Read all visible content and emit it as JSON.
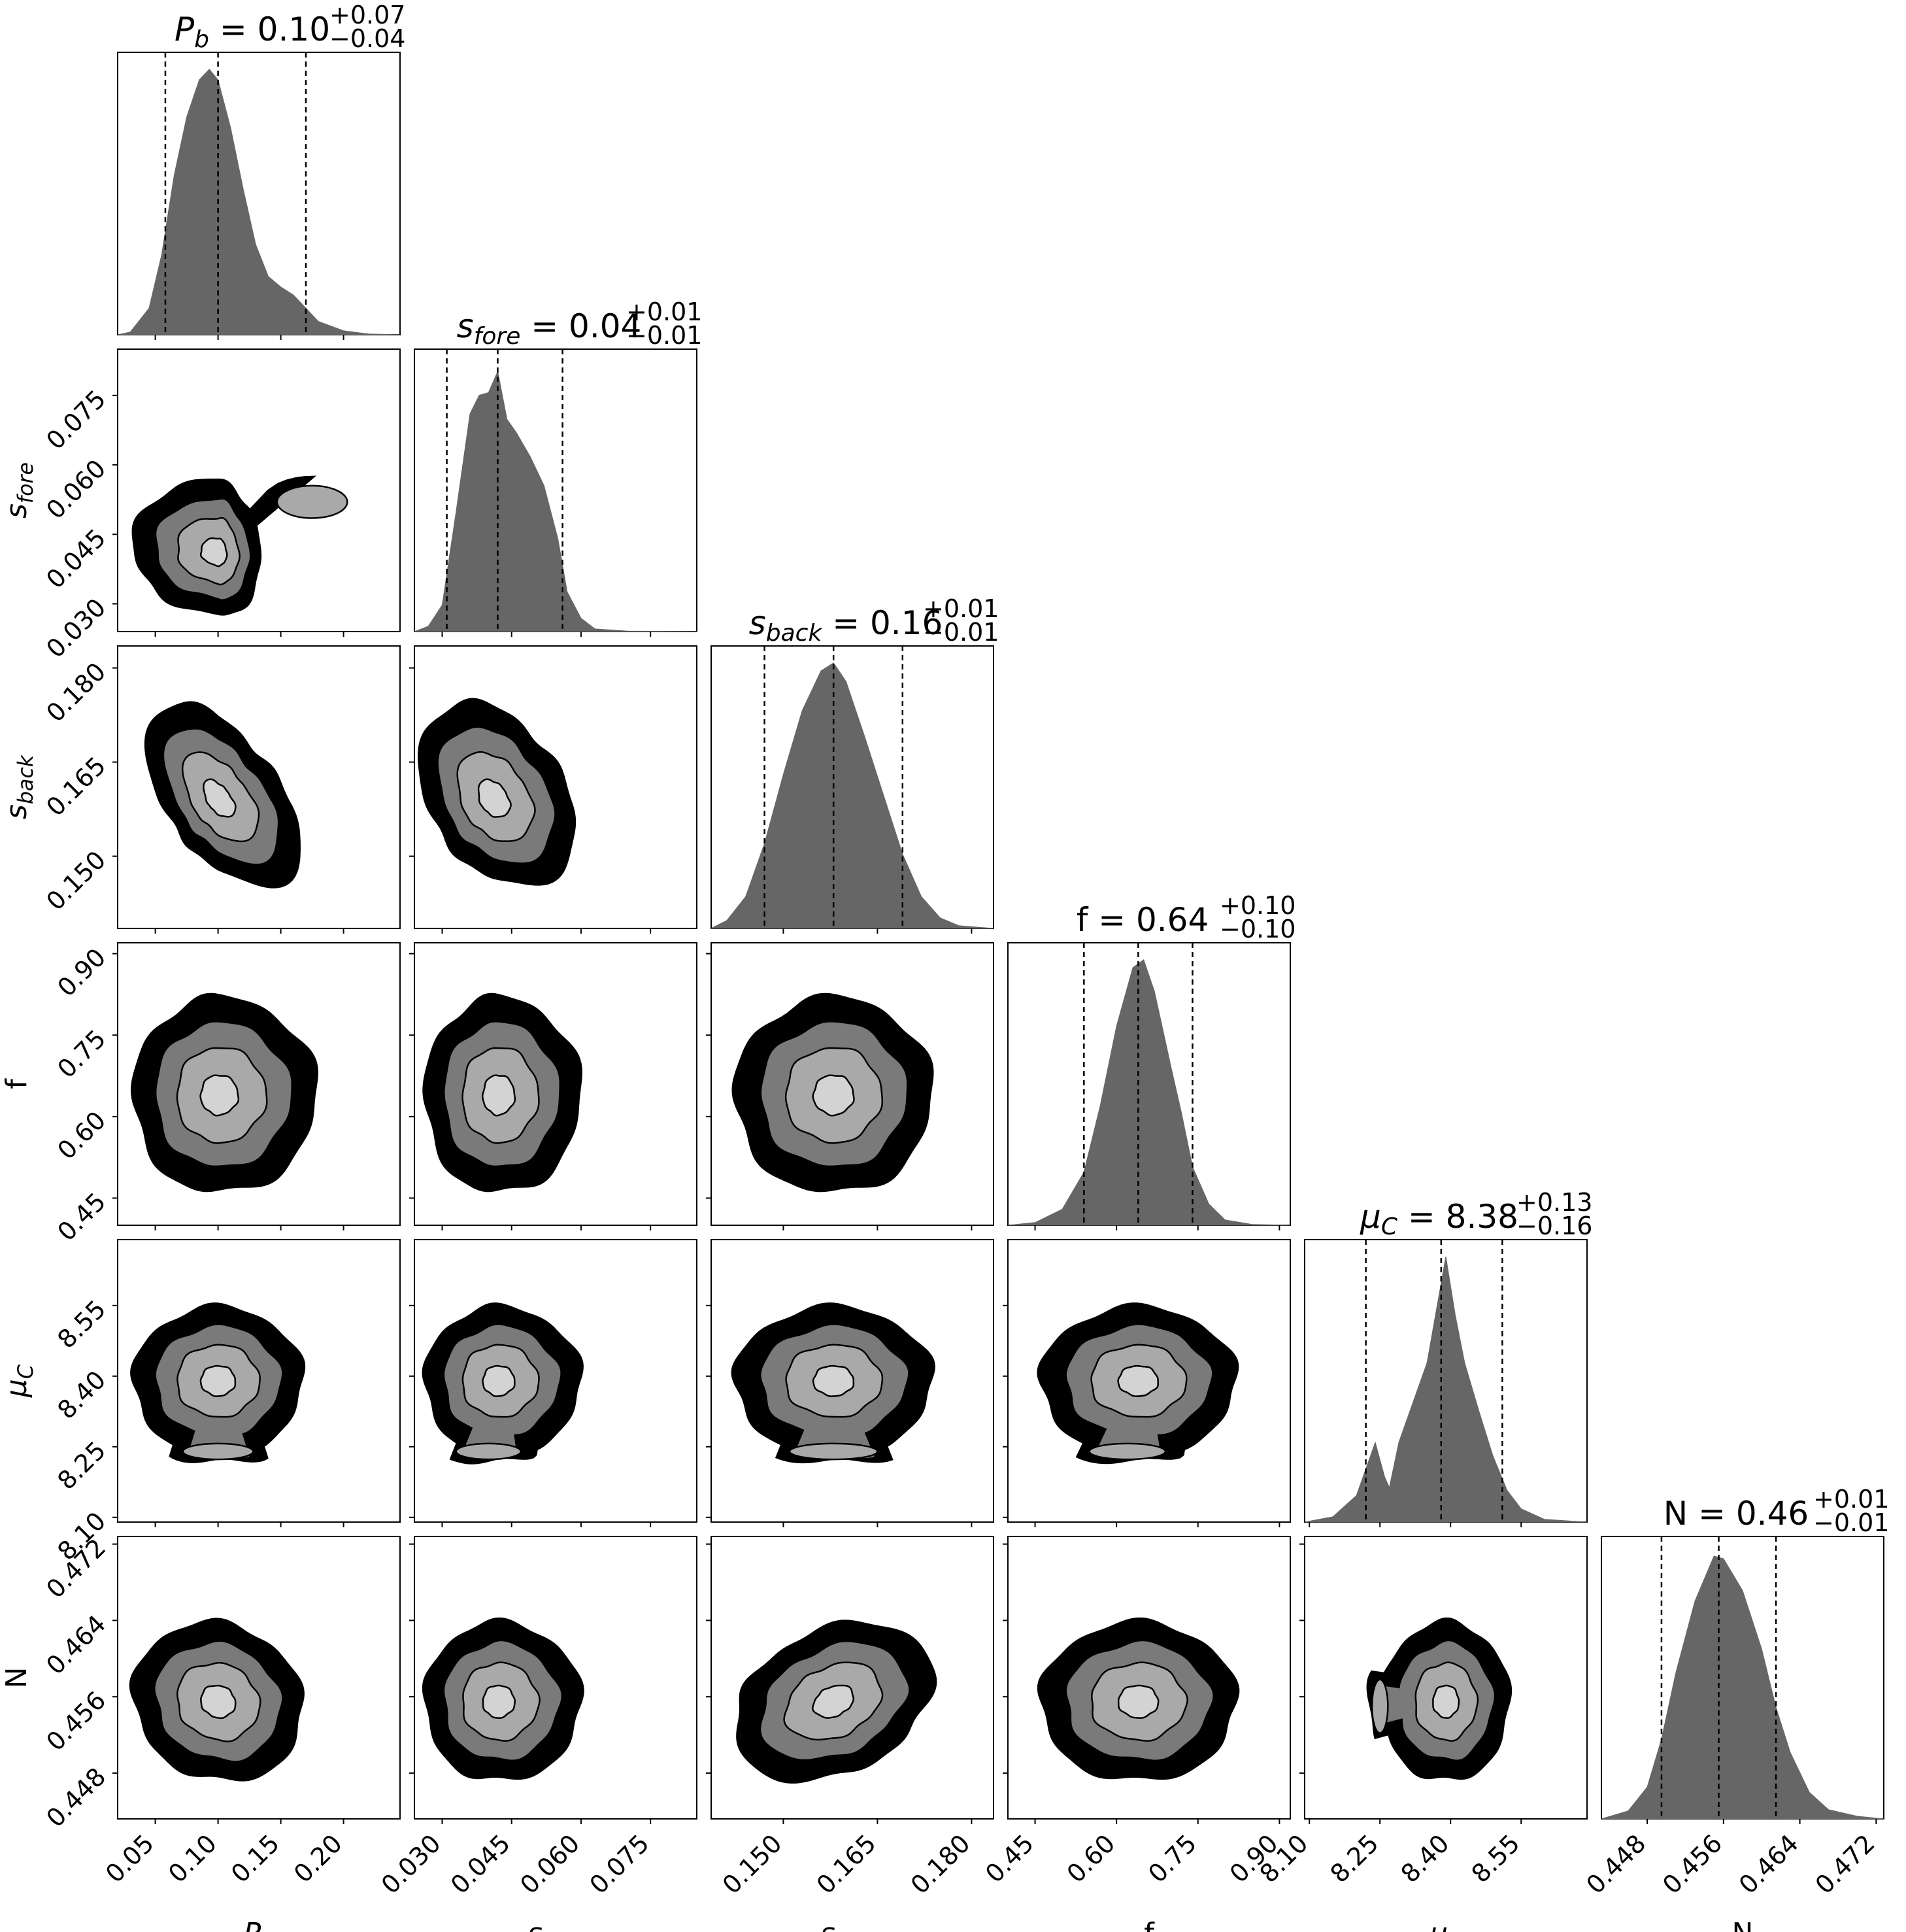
{
  "chart_data": {
    "type": "corner",
    "description_text": "",
    "parameters": [
      {
        "key": "Pb",
        "label": "P_b",
        "title": "P_b = 0.10^{+0.07}_{-0.04}",
        "title_main": "= 0.10",
        "title_up": "+0.07",
        "title_down": "−0.04",
        "median": 0.1,
        "q16": 0.058,
        "q84": 0.17,
        "range": [
          0.02,
          0.245
        ],
        "ticks": [
          0.05,
          0.1,
          0.15,
          0.2
        ],
        "tick_labels": [
          "0.05",
          "0.10",
          "0.15",
          "0.20"
        ],
        "hist": [
          [
            0.02,
            0
          ],
          [
            0.03,
            0.01
          ],
          [
            0.045,
            0.1
          ],
          [
            0.055,
            0.3
          ],
          [
            0.065,
            0.6
          ],
          [
            0.075,
            0.82
          ],
          [
            0.085,
            0.96
          ],
          [
            0.093,
            1.0
          ],
          [
            0.1,
            0.96
          ],
          [
            0.11,
            0.78
          ],
          [
            0.12,
            0.55
          ],
          [
            0.13,
            0.34
          ],
          [
            0.14,
            0.22
          ],
          [
            0.15,
            0.18
          ],
          [
            0.16,
            0.15
          ],
          [
            0.17,
            0.1
          ],
          [
            0.18,
            0.05
          ],
          [
            0.2,
            0.015
          ],
          [
            0.22,
            0.003
          ],
          [
            0.245,
            0
          ]
        ]
      },
      {
        "key": "sfore",
        "label": "s_fore",
        "title": "s_fore = 0.04^{+0.01}_{-0.01}",
        "title_main": "= 0.04",
        "title_up": "+0.01",
        "title_down": "−0.01",
        "median": 0.042,
        "q16": 0.031,
        "q84": 0.056,
        "range": [
          0.024,
          0.085
        ],
        "ticks": [
          0.03,
          0.045,
          0.06,
          0.075
        ],
        "tick_labels": [
          "0.030",
          "0.045",
          "0.060",
          "0.075"
        ],
        "hist": [
          [
            0.024,
            0
          ],
          [
            0.027,
            0.02
          ],
          [
            0.03,
            0.1
          ],
          [
            0.033,
            0.45
          ],
          [
            0.036,
            0.82
          ],
          [
            0.038,
            0.89
          ],
          [
            0.04,
            0.9
          ],
          [
            0.042,
            0.98
          ],
          [
            0.044,
            0.8
          ],
          [
            0.046,
            0.75
          ],
          [
            0.049,
            0.66
          ],
          [
            0.052,
            0.55
          ],
          [
            0.055,
            0.35
          ],
          [
            0.057,
            0.15
          ],
          [
            0.06,
            0.05
          ],
          [
            0.063,
            0.01
          ],
          [
            0.07,
            0.002
          ],
          [
            0.085,
            0
          ]
        ]
      },
      {
        "key": "sback",
        "label": "s_back",
        "title": "s_back = 0.16^{+0.01}_{-0.01}",
        "title_main": "= 0.16",
        "title_up": "+0.01",
        "title_down": "−0.01",
        "median": 0.158,
        "q16": 0.147,
        "q84": 0.169,
        "range": [
          0.1385,
          0.1835
        ],
        "ticks": [
          0.15,
          0.165,
          0.18
        ],
        "tick_labels": [
          "0.150",
          "0.165",
          "0.180"
        ],
        "hist": [
          [
            0.1385,
            0
          ],
          [
            0.141,
            0.03
          ],
          [
            0.144,
            0.12
          ],
          [
            0.147,
            0.32
          ],
          [
            0.15,
            0.58
          ],
          [
            0.153,
            0.82
          ],
          [
            0.156,
            0.97
          ],
          [
            0.158,
            1.0
          ],
          [
            0.16,
            0.93
          ],
          [
            0.163,
            0.72
          ],
          [
            0.166,
            0.5
          ],
          [
            0.169,
            0.28
          ],
          [
            0.172,
            0.12
          ],
          [
            0.175,
            0.04
          ],
          [
            0.178,
            0.01
          ],
          [
            0.1835,
            0
          ]
        ]
      },
      {
        "key": "f",
        "label": "f",
        "title": "f = 0.64^{+0.10}_{-0.10}",
        "title_main": "= 0.64",
        "title_up": "+0.10",
        "title_down": "−0.10",
        "median": 0.64,
        "q16": 0.54,
        "q84": 0.74,
        "range": [
          0.4,
          0.92
        ],
        "ticks": [
          0.45,
          0.6,
          0.75,
          0.9
        ],
        "tick_labels": [
          "0.45",
          "0.60",
          "0.75",
          "0.90"
        ],
        "hist": [
          [
            0.4,
            0
          ],
          [
            0.45,
            0.01
          ],
          [
            0.5,
            0.06
          ],
          [
            0.54,
            0.2
          ],
          [
            0.57,
            0.45
          ],
          [
            0.6,
            0.75
          ],
          [
            0.63,
            0.97
          ],
          [
            0.65,
            1.0
          ],
          [
            0.67,
            0.88
          ],
          [
            0.7,
            0.6
          ],
          [
            0.72,
            0.42
          ],
          [
            0.74,
            0.22
          ],
          [
            0.77,
            0.08
          ],
          [
            0.8,
            0.02
          ],
          [
            0.85,
            0.003
          ],
          [
            0.92,
            0
          ]
        ]
      },
      {
        "key": "muC",
        "label": "μ_C",
        "title": "μ_C = 8.38^{+0.13}_{-0.16}",
        "title_main": "= 8.38",
        "title_up": "+0.13",
        "title_down": "−0.16",
        "median": 8.38,
        "q16": 8.22,
        "q84": 8.51,
        "range": [
          8.09,
          8.69
        ],
        "ticks": [
          8.1,
          8.25,
          8.4,
          8.55
        ],
        "tick_labels": [
          "8.10",
          "8.25",
          "8.40",
          "8.55"
        ],
        "hist": [
          [
            8.09,
            0
          ],
          [
            8.15,
            0.02
          ],
          [
            8.2,
            0.1
          ],
          [
            8.22,
            0.2
          ],
          [
            8.24,
            0.3
          ],
          [
            8.26,
            0.17
          ],
          [
            8.27,
            0.13
          ],
          [
            8.29,
            0.3
          ],
          [
            8.32,
            0.45
          ],
          [
            8.35,
            0.6
          ],
          [
            8.37,
            0.8
          ],
          [
            8.39,
            1.0
          ],
          [
            8.41,
            0.78
          ],
          [
            8.43,
            0.6
          ],
          [
            8.46,
            0.42
          ],
          [
            8.49,
            0.25
          ],
          [
            8.52,
            0.12
          ],
          [
            8.55,
            0.05
          ],
          [
            8.6,
            0.01
          ],
          [
            8.69,
            0
          ]
        ]
      },
      {
        "key": "N",
        "label": "N",
        "title": "N = 0.46^{+0.01}_{-0.01}",
        "title_main": "= 0.46",
        "title_up": "+0.01",
        "title_down": "−0.01",
        "median": 0.4555,
        "q16": 0.4495,
        "q84": 0.4615,
        "range": [
          0.4432,
          0.4728
        ],
        "ticks": [
          0.448,
          0.456,
          0.464,
          0.472
        ],
        "tick_labels": [
          "0.448",
          "0.456",
          "0.464",
          "0.472"
        ],
        "hist": [
          [
            0.4432,
            0
          ],
          [
            0.446,
            0.03
          ],
          [
            0.448,
            0.12
          ],
          [
            0.4495,
            0.3
          ],
          [
            0.451,
            0.55
          ],
          [
            0.453,
            0.82
          ],
          [
            0.455,
            0.99
          ],
          [
            0.456,
            0.98
          ],
          [
            0.458,
            0.86
          ],
          [
            0.46,
            0.64
          ],
          [
            0.4615,
            0.42
          ],
          [
            0.463,
            0.25
          ],
          [
            0.465,
            0.1
          ],
          [
            0.467,
            0.035
          ],
          [
            0.47,
            0.01
          ],
          [
            0.4728,
            0
          ]
        ]
      }
    ],
    "joint": [
      {
        "row": 1,
        "col": 0,
        "center": [
          0.1,
          0.041
        ],
        "sx": [
          0.03,
          0.015
        ],
        "sy": [
          0.006,
          0.007
        ],
        "rho": -0.1,
        "blob": {
          "pos": [
            0.175,
            0.052
          ],
          "s": [
            0.02,
            0.0025
          ]
        }
      },
      {
        "row": 2,
        "col": 0,
        "center": [
          0.1,
          0.159
        ],
        "sx": [
          0.025,
          0.03
        ],
        "sy": [
          0.006,
          0.007
        ],
        "rho": -0.55
      },
      {
        "row": 3,
        "col": 0,
        "center": [
          0.1,
          0.64
        ],
        "sx": [
          0.03,
          0.035
        ],
        "sy": [
          0.08,
          0.08
        ],
        "rho": 0.0
      },
      {
        "row": 4,
        "col": 0,
        "center": [
          0.1,
          8.39
        ],
        "sx": [
          0.03,
          0.03
        ],
        "sy": [
          0.07,
          0.07
        ],
        "rho": 0.0,
        "blob": {
          "pos": [
            0.1,
            8.24
          ],
          "s": [
            0.02,
            0.012
          ]
        }
      },
      {
        "row": 5,
        "col": 0,
        "center": [
          0.1,
          0.4555
        ],
        "sx": [
          0.03,
          0.03
        ],
        "sy": [
          0.0037,
          0.0037
        ],
        "rho": -0.1
      },
      {
        "row": 2,
        "col": 1,
        "center": [
          0.041,
          0.159
        ],
        "sx": [
          0.007,
          0.008
        ],
        "sy": [
          0.006,
          0.007
        ],
        "rho": -0.35
      },
      {
        "row": 3,
        "col": 1,
        "center": [
          0.042,
          0.64
        ],
        "sx": [
          0.007,
          0.008
        ],
        "sy": [
          0.08,
          0.08
        ],
        "rho": 0.0
      },
      {
        "row": 4,
        "col": 1,
        "center": [
          0.042,
          8.39
        ],
        "sx": [
          0.007,
          0.008
        ],
        "sy": [
          0.07,
          0.07
        ],
        "rho": 0.0,
        "blob": {
          "pos": [
            0.04,
            8.24
          ],
          "s": [
            0.005,
            0.012
          ]
        }
      },
      {
        "row": 5,
        "col": 1,
        "center": [
          0.042,
          0.4555
        ],
        "sx": [
          0.007,
          0.008
        ],
        "sy": [
          0.0037,
          0.0037
        ],
        "rho": 0.0
      },
      {
        "row": 3,
        "col": 2,
        "center": [
          0.158,
          0.64
        ],
        "sx": [
          0.007,
          0.007
        ],
        "sy": [
          0.08,
          0.08
        ],
        "rho": 0.0
      },
      {
        "row": 4,
        "col": 2,
        "center": [
          0.158,
          8.39
        ],
        "sx": [
          0.007,
          0.007
        ],
        "sy": [
          0.07,
          0.07
        ],
        "rho": 0.0,
        "blob": {
          "pos": [
            0.158,
            8.24
          ],
          "s": [
            0.005,
            0.012
          ]
        }
      },
      {
        "row": 5,
        "col": 2,
        "center": [
          0.158,
          0.4555
        ],
        "sx": [
          0.007,
          0.007
        ],
        "sy": [
          0.0037,
          0.0037
        ],
        "rho": 0.3
      },
      {
        "row": 4,
        "col": 3,
        "center": [
          0.64,
          8.39
        ],
        "sx": [
          0.08,
          0.08
        ],
        "sy": [
          0.07,
          0.07
        ],
        "rho": 0.0,
        "blob": {
          "pos": [
            0.62,
            8.24
          ],
          "s": [
            0.05,
            0.012
          ]
        }
      },
      {
        "row": 5,
        "col": 3,
        "center": [
          0.64,
          0.4555
        ],
        "sx": [
          0.08,
          0.08
        ],
        "sy": [
          0.0037,
          0.0037
        ],
        "rho": 0.0
      },
      {
        "row": 5,
        "col": 4,
        "center": [
          8.39,
          0.4555
        ],
        "sx": [
          0.06,
          0.06
        ],
        "sy": [
          0.0037,
          0.0037
        ],
        "rho": 0.0,
        "blob": {
          "pos": [
            8.25,
            0.455
          ],
          "s": [
            0.012,
            0.002
          ]
        }
      }
    ],
    "contour_levels": [
      0.9,
      0.55,
      0.25,
      0.08
    ],
    "colors": {
      "fill": "#666666",
      "levels": [
        "#d3d3d3",
        "#a9a9a9",
        "#7a7a7a",
        "#000000"
      ],
      "line": "#000000",
      "frame": "#000000"
    }
  }
}
